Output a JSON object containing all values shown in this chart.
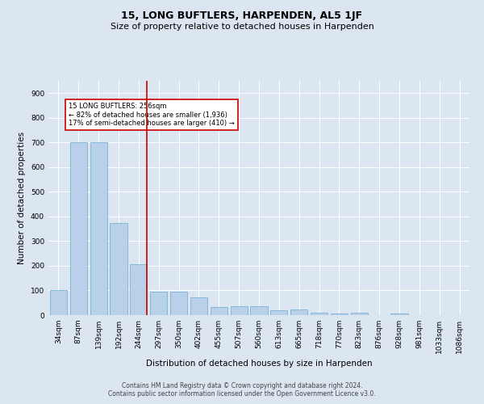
{
  "title": "15, LONG BUFTLERS, HARPENDEN, AL5 1JF",
  "subtitle": "Size of property relative to detached houses in Harpenden",
  "xlabel": "Distribution of detached houses by size in Harpenden",
  "ylabel": "Number of detached properties",
  "footer_line1": "Contains HM Land Registry data © Crown copyright and database right 2024.",
  "footer_line2": "Contains public sector information licensed under the Open Government Licence v3.0.",
  "categories": [
    "34sqm",
    "87sqm",
    "139sqm",
    "192sqm",
    "244sqm",
    "297sqm",
    "350sqm",
    "402sqm",
    "455sqm",
    "507sqm",
    "560sqm",
    "613sqm",
    "665sqm",
    "718sqm",
    "770sqm",
    "823sqm",
    "876sqm",
    "928sqm",
    "981sqm",
    "1033sqm",
    "1086sqm"
  ],
  "values": [
    100,
    700,
    700,
    375,
    205,
    95,
    95,
    73,
    33,
    35,
    35,
    20,
    22,
    10,
    8,
    10,
    0,
    8,
    0,
    0,
    0
  ],
  "bar_color": "#b8d0e8",
  "bar_edge_color": "#6aaad4",
  "highlight_index": 4,
  "highlight_color": "#cc0000",
  "ylim": [
    0,
    950
  ],
  "yticks": [
    0,
    100,
    200,
    300,
    400,
    500,
    600,
    700,
    800,
    900
  ],
  "annotation_text": "15 LONG BUFTLERS: 256sqm\n← 82% of detached houses are smaller (1,936)\n17% of semi-detached houses are larger (410) →",
  "annotation_box_color": "#ffffff",
  "annotation_box_edge_color": "#cc0000",
  "bg_color": "#dce6f0",
  "plot_bg_color": "#dce6f0",
  "title_fontsize": 9,
  "subtitle_fontsize": 8,
  "label_fontsize": 7.5,
  "tick_fontsize": 6.5,
  "footer_fontsize": 5.5
}
